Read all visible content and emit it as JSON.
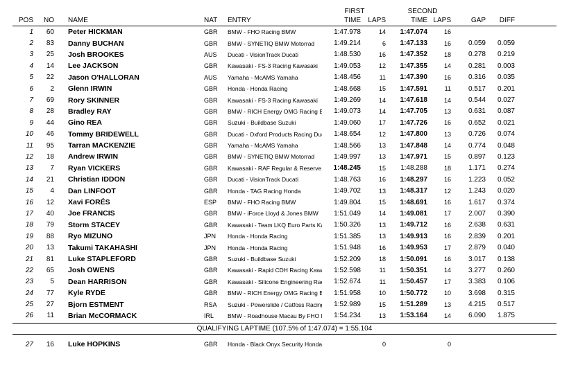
{
  "headers": {
    "first_group": "FIRST",
    "second_group": "SECOND",
    "pos": "POS",
    "no": "NO",
    "name": "NAME",
    "nat": "NAT",
    "entry": "ENTRY",
    "time": "TIME",
    "laps": "LAPS",
    "time2": "TIME",
    "laps2": "LAPS",
    "gap": "GAP",
    "diff": "DIFF"
  },
  "qualifying_line": "QUALIFYING LAPTIME (107.5% of 1:47.074) = 1:55.104",
  "rows": [
    {
      "pos": "1",
      "no": "60",
      "name": "Peter HICKMAN",
      "nat": "GBR",
      "entry": "BMW - FHO Racing BMW",
      "t1": "1:47.978",
      "l1": "14",
      "t2": "1:47.074",
      "l2": "16",
      "gap": "",
      "diff": "",
      "best1": false
    },
    {
      "pos": "2",
      "no": "83",
      "name": "Danny BUCHAN",
      "nat": "GBR",
      "entry": "BMW - SYNETIQ BMW Motorrad",
      "t1": "1:49.214",
      "l1": "6",
      "t2": "1:47.133",
      "l2": "16",
      "gap": "0.059",
      "diff": "0.059",
      "best1": false
    },
    {
      "pos": "3",
      "no": "25",
      "name": "Josh BROOKES",
      "nat": "AUS",
      "entry": "Ducati - VisionTrack Ducati",
      "t1": "1:48.530",
      "l1": "16",
      "t2": "1:47.352",
      "l2": "18",
      "gap": "0.278",
      "diff": "0.219",
      "best1": false
    },
    {
      "pos": "4",
      "no": "14",
      "name": "Lee JACKSON",
      "nat": "GBR",
      "entry": "Kawasaki - FS-3 Racing Kawasaki",
      "t1": "1:49.053",
      "l1": "12",
      "t2": "1:47.355",
      "l2": "14",
      "gap": "0.281",
      "diff": "0.003",
      "best1": false
    },
    {
      "pos": "5",
      "no": "22",
      "name": "Jason O'HALLORAN",
      "nat": "AUS",
      "entry": "Yamaha - McAMS Yamaha",
      "t1": "1:48.456",
      "l1": "11",
      "t2": "1:47.390",
      "l2": "16",
      "gap": "0.316",
      "diff": "0.035",
      "best1": false
    },
    {
      "pos": "6",
      "no": "2",
      "name": "Glenn IRWIN",
      "nat": "GBR",
      "entry": "Honda - Honda Racing",
      "t1": "1:48.668",
      "l1": "15",
      "t2": "1:47.591",
      "l2": "11",
      "gap": "0.517",
      "diff": "0.201",
      "best1": false
    },
    {
      "pos": "7",
      "no": "69",
      "name": "Rory SKINNER",
      "nat": "GBR",
      "entry": "Kawasaki - FS-3 Racing Kawasaki",
      "t1": "1:49.269",
      "l1": "14",
      "t2": "1:47.618",
      "l2": "14",
      "gap": "0.544",
      "diff": "0.027",
      "best1": false
    },
    {
      "pos": "8",
      "no": "28",
      "name": "Bradley RAY",
      "nat": "GBR",
      "entry": "BMW - RICH Energy OMG Racing BMW",
      "t1": "1:49.073",
      "l1": "14",
      "t2": "1:47.705",
      "l2": "13",
      "gap": "0.631",
      "diff": "0.087",
      "best1": false
    },
    {
      "pos": "9",
      "no": "44",
      "name": "Gino REA",
      "nat": "GBR",
      "entry": "Suzuki - Buildbase Suzuki",
      "t1": "1:49.060",
      "l1": "17",
      "t2": "1:47.726",
      "l2": "16",
      "gap": "0.652",
      "diff": "0.021",
      "best1": false
    },
    {
      "pos": "10",
      "no": "46",
      "name": "Tommy BRIDEWELL",
      "nat": "GBR",
      "entry": "Ducati - Oxford Products Racing Ducati",
      "t1": "1:48.654",
      "l1": "12",
      "t2": "1:47.800",
      "l2": "13",
      "gap": "0.726",
      "diff": "0.074",
      "best1": false
    },
    {
      "pos": "11",
      "no": "95",
      "name": "Tarran MACKENZIE",
      "nat": "GBR",
      "entry": "Yamaha - McAMS Yamaha",
      "t1": "1:48.566",
      "l1": "13",
      "t2": "1:47.848",
      "l2": "14",
      "gap": "0.774",
      "diff": "0.048",
      "best1": false
    },
    {
      "pos": "12",
      "no": "18",
      "name": "Andrew IRWIN",
      "nat": "GBR",
      "entry": "BMW - SYNETIQ BMW Motorrad",
      "t1": "1:49.997",
      "l1": "13",
      "t2": "1:47.971",
      "l2": "15",
      "gap": "0.897",
      "diff": "0.123",
      "best1": false
    },
    {
      "pos": "13",
      "no": "7",
      "name": "Ryan VICKERS",
      "nat": "GBR",
      "entry": "Kawasaki - RAF Regular & Reserve Kawasaki",
      "t1": "1:48.245",
      "l1": "15",
      "t2": "1:48.288",
      "l2": "18",
      "gap": "1.171",
      "diff": "0.274",
      "best1": true
    },
    {
      "pos": "14",
      "no": "21",
      "name": "Christian IDDON",
      "nat": "GBR",
      "entry": "Ducati - VisionTrack Ducati",
      "t1": "1:48.763",
      "l1": "16",
      "t2": "1:48.297",
      "l2": "16",
      "gap": "1.223",
      "diff": "0.052",
      "best1": false
    },
    {
      "pos": "15",
      "no": "4",
      "name": "Dan LINFOOT",
      "nat": "GBR",
      "entry": "Honda - TAG Racing Honda",
      "t1": "1:49.702",
      "l1": "13",
      "t2": "1:48.317",
      "l2": "12",
      "gap": "1.243",
      "diff": "0.020",
      "best1": false
    },
    {
      "pos": "16",
      "no": "12",
      "name": "Xavi FORÉS",
      "nat": "ESP",
      "entry": "BMW - FHO Racing BMW",
      "t1": "1:49.804",
      "l1": "15",
      "t2": "1:48.691",
      "l2": "16",
      "gap": "1.617",
      "diff": "0.374",
      "best1": false
    },
    {
      "pos": "17",
      "no": "40",
      "name": "Joe FRANCIS",
      "nat": "GBR",
      "entry": "BMW - iForce Lloyd & Jones BMW",
      "t1": "1:51.049",
      "l1": "14",
      "t2": "1:49.081",
      "l2": "17",
      "gap": "2.007",
      "diff": "0.390",
      "best1": false
    },
    {
      "pos": "18",
      "no": "79",
      "name": "Storm STACEY",
      "nat": "GBR",
      "entry": "Kawasaki - Team LKQ Euro Parts Kawasaki",
      "t1": "1:50.326",
      "l1": "13",
      "t2": "1:49.712",
      "l2": "16",
      "gap": "2.638",
      "diff": "0.631",
      "best1": false
    },
    {
      "pos": "19",
      "no": "88",
      "name": "Ryo MIZUNO",
      "nat": "JPN",
      "entry": "Honda - Honda Racing",
      "t1": "1:51.385",
      "l1": "13",
      "t2": "1:49.913",
      "l2": "16",
      "gap": "2.839",
      "diff": "0.201",
      "best1": false
    },
    {
      "pos": "20",
      "no": "13",
      "name": "Takumi TAKAHASHI",
      "nat": "JPN",
      "entry": "Honda - Honda Racing",
      "t1": "1:51.948",
      "l1": "16",
      "t2": "1:49.953",
      "l2": "17",
      "gap": "2.879",
      "diff": "0.040",
      "best1": false
    },
    {
      "pos": "21",
      "no": "81",
      "name": "Luke STAPLEFORD",
      "nat": "GBR",
      "entry": "Suzuki - Buildbase Suzuki",
      "t1": "1:52.209",
      "l1": "18",
      "t2": "1:50.091",
      "l2": "16",
      "gap": "3.017",
      "diff": "0.138",
      "best1": false
    },
    {
      "pos": "22",
      "no": "65",
      "name": "Josh OWENS",
      "nat": "GBR",
      "entry": "Kawasaki - Rapid CDH Racing Kawasaki",
      "t1": "1:52.598",
      "l1": "11",
      "t2": "1:50.351",
      "l2": "14",
      "gap": "3.277",
      "diff": "0.260",
      "best1": false
    },
    {
      "pos": "23",
      "no": "5",
      "name": "Dean HARRISON",
      "nat": "GBR",
      "entry": "Kawasaki - Silicone Engineering Racing Kawasaki",
      "t1": "1:52.674",
      "l1": "11",
      "t2": "1:50.457",
      "l2": "17",
      "gap": "3.383",
      "diff": "0.106",
      "best1": false
    },
    {
      "pos": "24",
      "no": "77",
      "name": "Kyle RYDE",
      "nat": "GBR",
      "entry": "BMW - RICH Energy OMG Racing BMW",
      "t1": "1:51.958",
      "l1": "10",
      "t2": "1:50.772",
      "l2": "10",
      "gap": "3.698",
      "diff": "0.315",
      "best1": false
    },
    {
      "pos": "25",
      "no": "27",
      "name": "Bjorn ESTMENT",
      "nat": "RSA",
      "entry": "Suzuki - Powerslide / Catfoss Racing Suzuki",
      "t1": "1:52.989",
      "l1": "15",
      "t2": "1:51.289",
      "l2": "13",
      "gap": "4.215",
      "diff": "0.517",
      "best1": false
    },
    {
      "pos": "26",
      "no": "11",
      "name": "Brian McCORMACK",
      "nat": "IRL",
      "entry": "BMW - Roadhouse Macau By FHO Racing BMW",
      "t1": "1:54.234",
      "l1": "13",
      "t2": "1:53.164",
      "l2": "14",
      "gap": "6.090",
      "diff": "1.875",
      "best1": false
    }
  ],
  "dnq_rows": [
    {
      "pos": "27",
      "no": "16",
      "name": "Luke HOPKINS",
      "nat": "GBR",
      "entry": "Honda - Black Onyx Security Honda",
      "t1": "",
      "l1": "0",
      "t2": "",
      "l2": "0",
      "gap": "",
      "diff": ""
    }
  ]
}
